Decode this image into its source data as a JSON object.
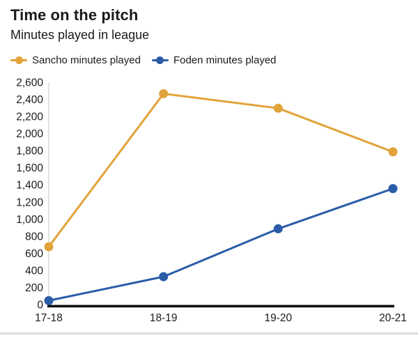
{
  "header": {
    "title": "Time on the pitch",
    "subtitle": "Minutes played in league"
  },
  "legend": [
    {
      "label": "Sancho minutes played",
      "color": "#E2A33A"
    },
    {
      "label": "Foden minutes played",
      "color": "#2A5CA8"
    }
  ],
  "colors": {
    "sancho": "#E2A33A",
    "foden": "#2A5CA8",
    "axis_line": "#111111",
    "y_axis_line": "#d8d8d8",
    "text": "#1a1a1a",
    "divider": "#dcdcdc"
  },
  "chart_data": {
    "type": "line",
    "title": "Time on the pitch",
    "subtitle": "Minutes played in league",
    "xlabel": "",
    "ylabel": "",
    "categories": [
      "17-18",
      "18-19",
      "19-20",
      "20-21"
    ],
    "series": [
      {
        "name": "Sancho minutes played",
        "color": "#E2A33A",
        "values": [
          680,
          2470,
          2300,
          1790
        ]
      },
      {
        "name": "Foden minutes played",
        "color": "#2A5CA8",
        "values": [
          50,
          330,
          890,
          1360
        ]
      }
    ],
    "ylim": [
      0,
      2600
    ],
    "ytick_step": 200,
    "grid": "off",
    "legend_position": "top-left",
    "marker": "circle"
  }
}
